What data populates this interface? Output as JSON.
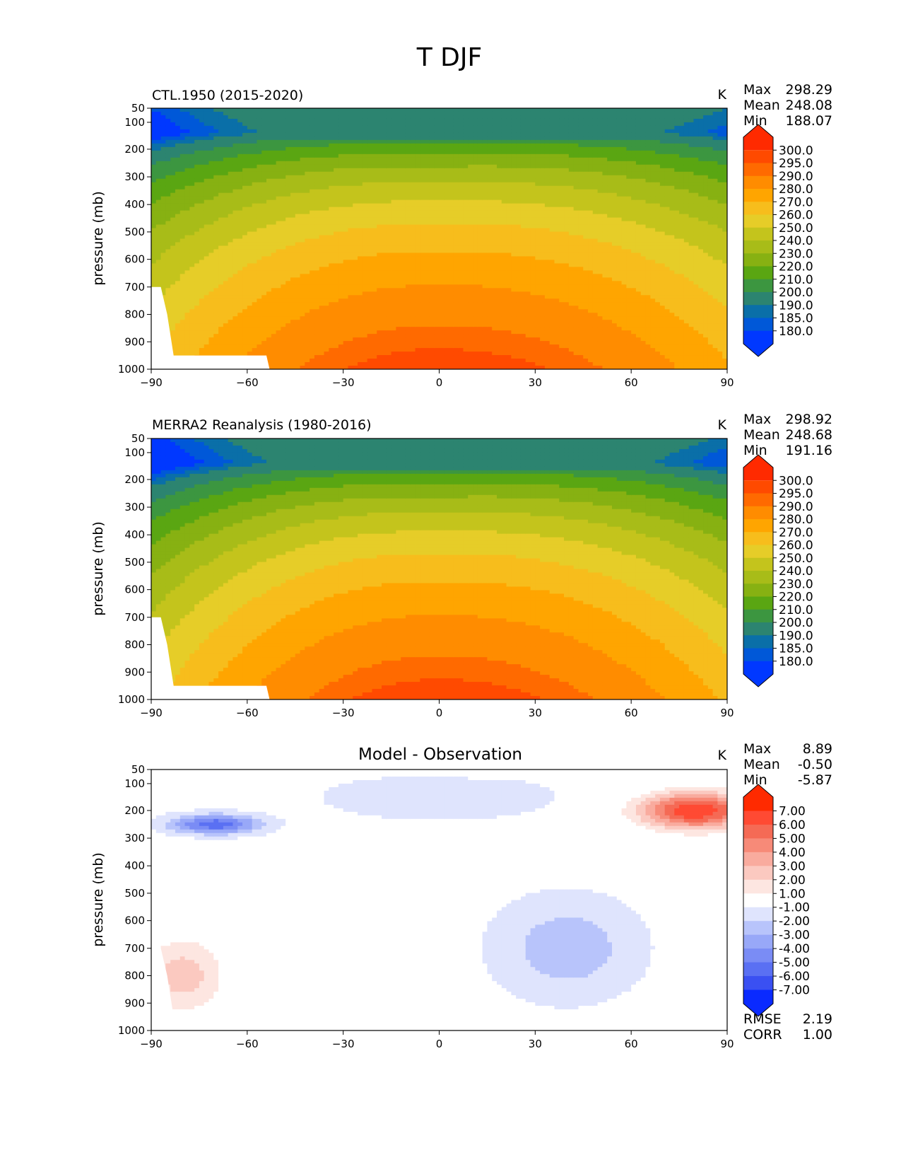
{
  "figure": {
    "title": "T DJF"
  },
  "x_ticks": [
    -90,
    -60,
    -30,
    0,
    30,
    60,
    90
  ],
  "y_ticks": [
    50,
    100,
    200,
    300,
    400,
    500,
    600,
    700,
    800,
    900,
    1000
  ],
  "chart_data": [
    {
      "type": "contour",
      "panel": "model",
      "left_title": "CTL.1950 (2015-2020)",
      "center_title": "",
      "units": "K",
      "xlabel": "",
      "ylabel": "pressure (mb)",
      "xlim": [
        -90,
        90
      ],
      "ylim": [
        1000,
        50
      ],
      "stats": [
        {
          "label": "Max",
          "value": "298.29"
        },
        {
          "label": "Mean",
          "value": "248.08"
        },
        {
          "label": "Min",
          "value": "188.07"
        }
      ],
      "colorbar": {
        "levels": [
          "300.0",
          "295.0",
          "290.0",
          "280.0",
          "270.0",
          "260.0",
          "250.0",
          "240.0",
          "230.0",
          "220.0",
          "210.0",
          "200.0",
          "190.0",
          "185.0",
          "180.0"
        ],
        "colors": [
          "#ff2a00",
          "#ff4a00",
          "#ff6a00",
          "#ff8c00",
          "#ffa500",
          "#f7bd1c",
          "#e6cd28",
          "#c4c41c",
          "#a8bc18",
          "#87b112",
          "#5aa612",
          "#3c9640",
          "#2c8470",
          "#0a6fa8",
          "#0058d8",
          "#0038ff"
        ]
      },
      "scheme": "T",
      "lat_scale": 1.0,
      "surface_min": 10
    },
    {
      "type": "contour",
      "panel": "observation",
      "left_title": "MERRA2 Reanalysis (1980-2016)",
      "center_title": "",
      "units": "K",
      "xlabel": "",
      "ylabel": "pressure (mb)",
      "xlim": [
        -90,
        90
      ],
      "ylim": [
        1000,
        50
      ],
      "stats": [
        {
          "label": "Max",
          "value": "298.92"
        },
        {
          "label": "Mean",
          "value": "248.68"
        },
        {
          "label": "Min",
          "value": "191.16"
        }
      ],
      "colorbar": {
        "levels": [
          "300.0",
          "295.0",
          "290.0",
          "280.0",
          "270.0",
          "260.0",
          "250.0",
          "240.0",
          "230.0",
          "220.0",
          "210.0",
          "200.0",
          "190.0",
          "185.0",
          "180.0"
        ],
        "colors": [
          "#ff2a00",
          "#ff4a00",
          "#ff6a00",
          "#ff8c00",
          "#ffa500",
          "#f7bd1c",
          "#e6cd28",
          "#c4c41c",
          "#a8bc18",
          "#87b112",
          "#5aa612",
          "#3c9640",
          "#2c8470",
          "#0a6fa8",
          "#0058d8",
          "#0038ff"
        ]
      },
      "scheme": "T",
      "lat_scale": 1.06,
      "surface_min": 10
    },
    {
      "type": "contour",
      "panel": "difference",
      "left_title": "",
      "center_title": "Model - Observation",
      "units": "K",
      "xlabel": "",
      "ylabel": "pressure (mb)",
      "xlim": [
        -90,
        90
      ],
      "ylim": [
        1000,
        50
      ],
      "stats": [
        {
          "label": "Max",
          "value": "8.89"
        },
        {
          "label": "Mean",
          "value": "-0.50"
        },
        {
          "label": "Min",
          "value": "-5.87"
        }
      ],
      "extra_stats": [
        {
          "label": "RMSE",
          "value": "2.19"
        },
        {
          "label": "CORR",
          "value": "1.00"
        }
      ],
      "colorbar": {
        "levels": [
          "7.00",
          "6.00",
          "5.00",
          "4.00",
          "3.00",
          "2.00",
          "1.00",
          "-1.00",
          "-2.00",
          "-3.00",
          "-4.00",
          "-5.00",
          "-6.00",
          "-7.00"
        ],
        "colors": [
          "#ff2a00",
          "#ff4a33",
          "#f56a55",
          "#f78a78",
          "#f9ab9e",
          "#fbc9c0",
          "#fde6e1",
          "#ffffff",
          "#dfe4fd",
          "#b8c4fb",
          "#98a8f8",
          "#7a8cf5",
          "#5a70f3",
          "#3a50f2",
          "#0a2aff"
        ]
      },
      "scheme": "D",
      "lat_scale": 1.0,
      "surface_min": 10
    }
  ]
}
